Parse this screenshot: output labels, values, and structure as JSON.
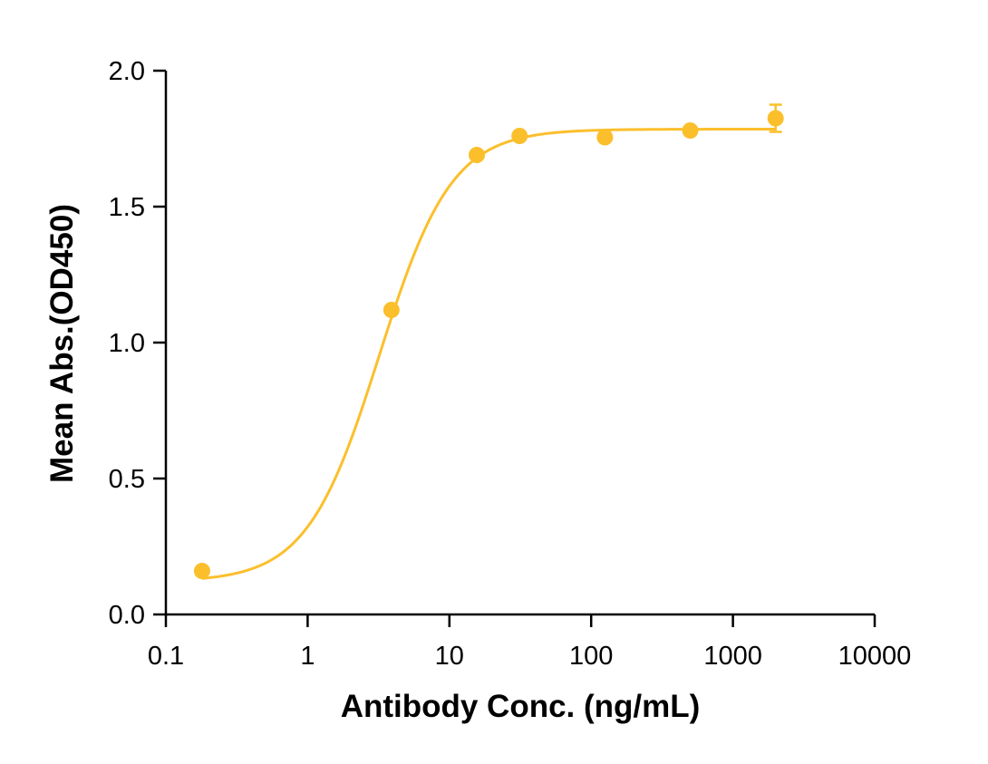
{
  "chart_data": {
    "type": "scatter",
    "xlabel": "Antibody Conc. (ng/mL)",
    "ylabel": "Mean Abs.(OD450)",
    "x_scale": "log",
    "xlim": [
      0.1,
      10000
    ],
    "ylim": [
      0,
      2.0
    ],
    "x_ticks": [
      0.1,
      1,
      10,
      100,
      1000,
      10000
    ],
    "x_tick_labels": [
      "0.1",
      "1",
      "10",
      "100",
      "1000",
      "10000"
    ],
    "y_ticks": [
      0,
      0.5,
      1.0,
      1.5,
      2.0
    ],
    "y_tick_labels": [
      "0.0",
      "0.5",
      "1.0",
      "1.5",
      "2.0"
    ],
    "grid": false,
    "color": "#FBBF2C",
    "points": [
      {
        "x": 0.18,
        "y": 0.16,
        "err": 0
      },
      {
        "x": 3.9,
        "y": 1.12,
        "err": 0
      },
      {
        "x": 15.6,
        "y": 1.69,
        "err": 0
      },
      {
        "x": 31.25,
        "y": 1.76,
        "err": 0
      },
      {
        "x": 125,
        "y": 1.755,
        "err": 0
      },
      {
        "x": 500,
        "y": 1.78,
        "err": 0
      },
      {
        "x": 2000,
        "y": 1.825,
        "err": 0.05
      }
    ],
    "fit": {
      "model": "4PL",
      "bottom": 0.12,
      "top": 1.785,
      "ec50": 3.2,
      "hill": 1.7
    }
  }
}
